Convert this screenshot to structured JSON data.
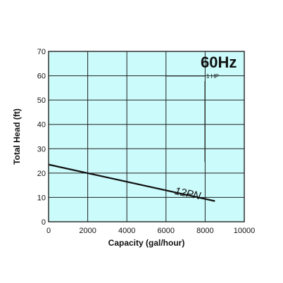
{
  "chart_data": {
    "type": "line",
    "xlabel": "Capacity (gal/hour)",
    "ylabel": "Total Head (ft)",
    "xlim": [
      0,
      10000
    ],
    "ylim": [
      0,
      70
    ],
    "x_ticks": [
      0,
      2000,
      4000,
      6000,
      8000,
      10000
    ],
    "y_ticks": [
      0,
      10,
      20,
      30,
      40,
      50,
      60,
      70
    ],
    "x_tick_labels": [
      "0",
      "2000",
      "4000",
      "6000",
      "8000",
      "10000"
    ],
    "y_tick_labels": [
      "0",
      "10",
      "20",
      "30",
      "40",
      "50",
      "60",
      "70"
    ],
    "grid": true,
    "annotations": {
      "frequency": "60Hz",
      "power": "1 HP"
    },
    "series": [
      {
        "name": "12PN",
        "x": [
          0,
          8500
        ],
        "y": [
          23.5,
          8.5
        ]
      }
    ]
  },
  "colors": {
    "plot_background": "#ccfbfb",
    "grid": "#222222",
    "line": "#111111",
    "text": "#111111"
  }
}
